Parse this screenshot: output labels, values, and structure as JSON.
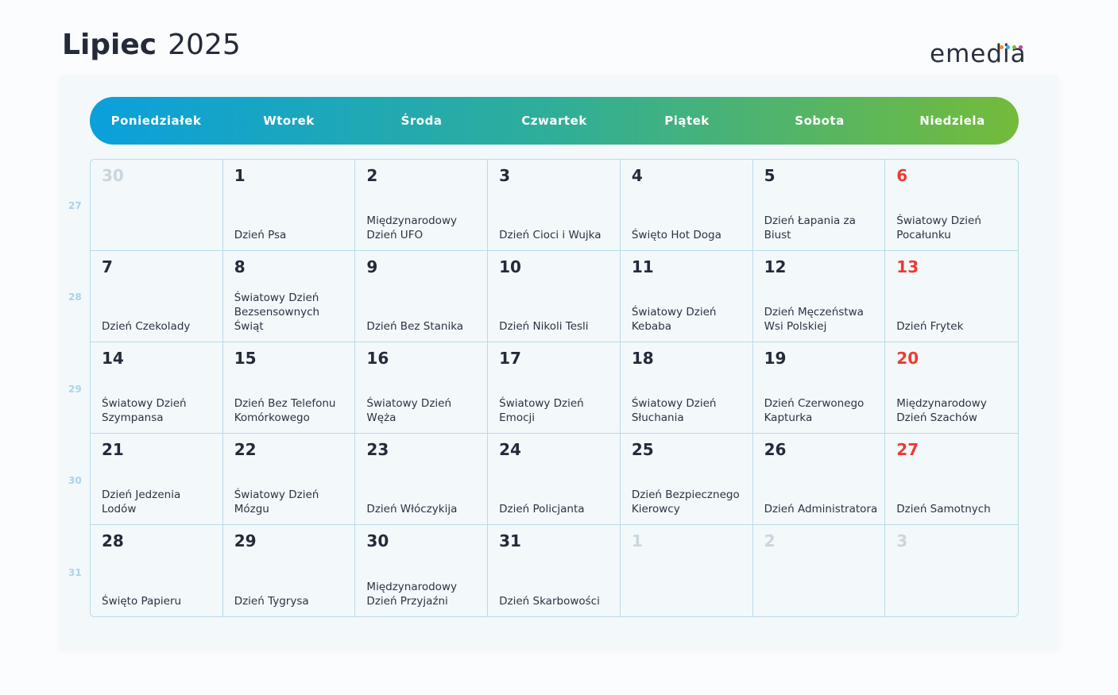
{
  "header": {
    "month": "Lipiec",
    "year": "2025"
  },
  "logo": {
    "text": "emedia",
    "dot_colors": [
      "#f08a24",
      "#2fb0e0",
      "#6cc04a",
      "#c23fa8"
    ]
  },
  "days": [
    "Poniedziałek",
    "Wtorek",
    "Środa",
    "Czwartek",
    "Piątek",
    "Sobota",
    "Niedziela"
  ],
  "weeks": [
    "27",
    "28",
    "29",
    "30",
    "31"
  ],
  "colors": {
    "gradient_start": "#0aa0dc",
    "gradient_end": "#74bb3a",
    "sunday": "#ee3a32",
    "other_month": "#c9d6dd"
  },
  "cells": [
    {
      "d": "30",
      "e": "",
      "t": "other"
    },
    {
      "d": "1",
      "e": "Dzień Psa"
    },
    {
      "d": "2",
      "e": "Międzynarodowy Dzień UFO"
    },
    {
      "d": "3",
      "e": "Dzień Cioci i Wujka"
    },
    {
      "d": "4",
      "e": "Święto Hot Doga"
    },
    {
      "d": "5",
      "e": "Dzień Łapania za Biust"
    },
    {
      "d": "6",
      "e": "Światowy Dzień Pocałunku",
      "t": "sun"
    },
    {
      "d": "7",
      "e": "Dzień Czekolady"
    },
    {
      "d": "8",
      "e": "Światowy Dzień Bezsensownych Świąt"
    },
    {
      "d": "9",
      "e": "Dzień Bez Stanika"
    },
    {
      "d": "10",
      "e": "Dzień Nikoli Tesli"
    },
    {
      "d": "11",
      "e": "Światowy Dzień Kebaba"
    },
    {
      "d": "12",
      "e": "Dzień Męczeństwa Wsi Polskiej"
    },
    {
      "d": "13",
      "e": "Dzień Frytek",
      "t": "sun"
    },
    {
      "d": "14",
      "e": "Światowy Dzień Szympansa"
    },
    {
      "d": "15",
      "e": "Dzień Bez Telefonu Komórkowego"
    },
    {
      "d": "16",
      "e": "Światowy Dzień Węża"
    },
    {
      "d": "17",
      "e": "Światowy Dzień Emocji"
    },
    {
      "d": "18",
      "e": "Światowy Dzień Słuchania"
    },
    {
      "d": "19",
      "e": "Dzień Czerwonego Kapturka"
    },
    {
      "d": "20",
      "e": "Międzynarodowy Dzień Szachów",
      "t": "sun"
    },
    {
      "d": "21",
      "e": "Dzień Jedzenia Lodów"
    },
    {
      "d": "22",
      "e": "Światowy Dzień Mózgu"
    },
    {
      "d": "23",
      "e": "Dzień Włóczykija"
    },
    {
      "d": "24",
      "e": "Dzień Policjanta"
    },
    {
      "d": "25",
      "e": "Dzień Bezpiecznego Kierowcy"
    },
    {
      "d": "26",
      "e": "Dzień Administratora"
    },
    {
      "d": "27",
      "e": "Dzień Samotnych",
      "t": "sun"
    },
    {
      "d": "28",
      "e": "Święto Papieru"
    },
    {
      "d": "29",
      "e": "Dzień Tygrysa"
    },
    {
      "d": "30",
      "e": "Międzynarodowy Dzień Przyjaźni"
    },
    {
      "d": "31",
      "e": "Dzień Skarbowości"
    },
    {
      "d": "1",
      "e": "",
      "t": "other"
    },
    {
      "d": "2",
      "e": "",
      "t": "other"
    },
    {
      "d": "3",
      "e": "",
      "t": "other"
    }
  ]
}
